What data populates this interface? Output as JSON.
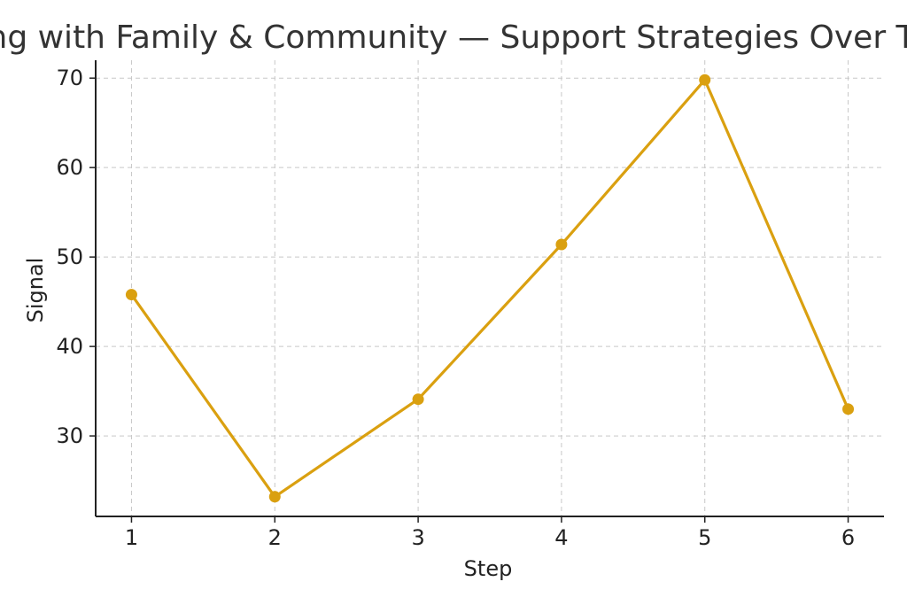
{
  "chart_data": {
    "type": "line",
    "title": "Working with Family & Community — Support Strategies Over Time",
    "xlabel": "Step",
    "ylabel": "Signal",
    "x": [
      1,
      2,
      3,
      4,
      5,
      6
    ],
    "xticks": [
      "1",
      "2",
      "3",
      "4",
      "5",
      "6"
    ],
    "yticks": [
      "30",
      "40",
      "50",
      "60",
      "70"
    ],
    "xlim": [
      0.75,
      6.25
    ],
    "ylim": [
      21,
      72
    ],
    "grid": true,
    "series": [
      {
        "color": "#DAA010",
        "values": [
          45.8,
          23.2,
          34.1,
          51.4,
          69.8,
          33.0
        ]
      }
    ]
  }
}
